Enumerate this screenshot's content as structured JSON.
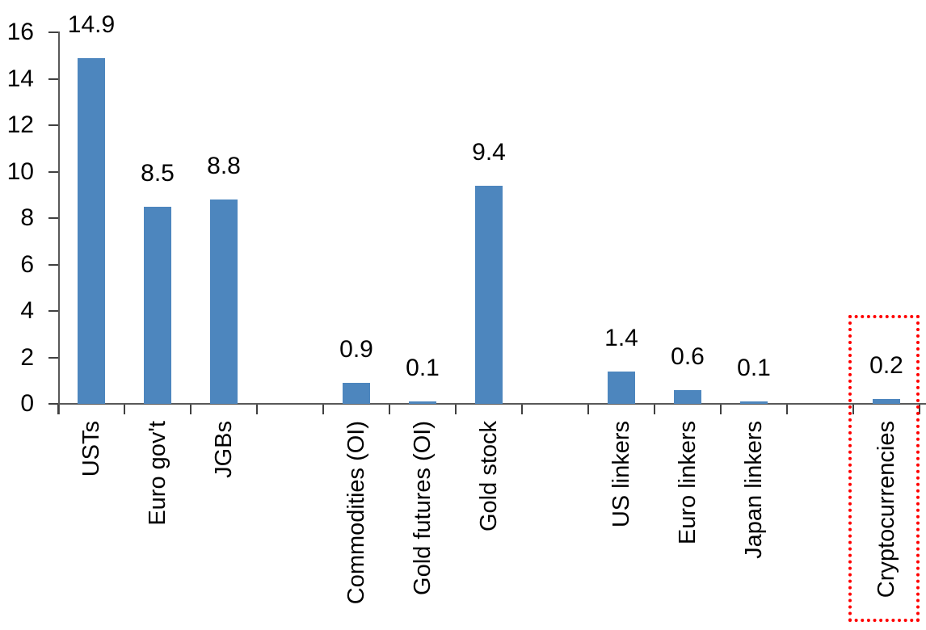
{
  "chart_data": {
    "type": "bar",
    "categories": [
      "USTs",
      "Euro gov't",
      "JGBs",
      "",
      "Commodities (OI)",
      "Gold futures (OI)",
      "Gold stock",
      "",
      "US linkers",
      "Euro linkers",
      "Japan linkers",
      "",
      "Cryptocurrencies"
    ],
    "values": [
      14.9,
      8.5,
      8.8,
      null,
      0.9,
      0.1,
      9.4,
      null,
      1.4,
      0.6,
      0.1,
      null,
      0.2
    ],
    "data_labels": [
      "14.9",
      "8.5",
      "8.8",
      "",
      "0.9",
      "0.1",
      "9.4",
      "",
      "1.4",
      "0.6",
      "0.1",
      "",
      "0.2"
    ],
    "y_tick_labels": [
      "0",
      "2",
      "4",
      "6",
      "8",
      "10",
      "12",
      "14",
      "16"
    ],
    "y_ticks": [
      0,
      2,
      4,
      6,
      8,
      10,
      12,
      14,
      16
    ],
    "ylim": [
      0,
      16
    ],
    "title": "",
    "xlabel": "",
    "ylabel": "",
    "grid": false,
    "legend_position": "none",
    "bar_color": "#4D86BE",
    "axis_color": "#595959",
    "label_color": "#000000",
    "highlight": {
      "category": "Cryptocurrencies",
      "box_color": "#FF0000",
      "box_style": "dotted"
    }
  }
}
